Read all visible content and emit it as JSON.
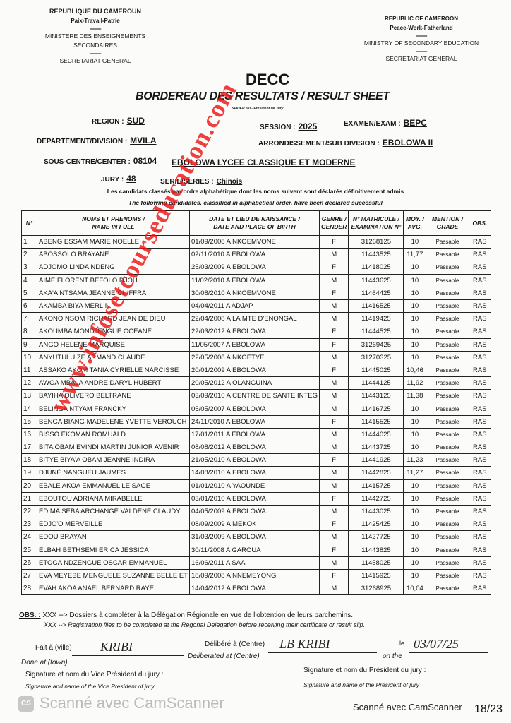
{
  "header_left": {
    "country": "REPUBLIQUE DU CAMEROUN",
    "motto": "Paix-Travail-Patrie",
    "ministry": "MINISTERE DES ENSEIGNEMENTS SECONDAIRES",
    "secretariat": "SECRETARIAT GENERAL"
  },
  "header_right": {
    "country": "REPUBLIC OF CAMEROON",
    "motto": "Peace-Work-Fatherland",
    "ministry": "MINISTRY OF SECONDARY EDUCATION",
    "secretariat": "SECRETARIAT GENERAL"
  },
  "title": "DECC",
  "subtitle": "BORDEREAU DES RESULTATS / RESULT SHEET",
  "software": "SPIDER 3.0 - Président de Jury",
  "info": {
    "region_label": "REGION :",
    "region": "SUD",
    "session_label": "SESSION :",
    "session": "2025",
    "exam_label": "EXAMEN/EXAM :",
    "exam": "BEPC",
    "division_label": "DEPARTEMENT/DIVISION :",
    "division": "MVILA",
    "subdivision_label": "ARRONDISSEMENT/SUB DIVISION :",
    "subdivision": "EBOLOWA II",
    "center_label": "SOUS-CENTRE/CENTER :",
    "center_code": "08104",
    "center_name": "EBOLOWA LYCEE CLASSIQUE ET MODERNE",
    "jury_label": "JURY :",
    "jury": "48",
    "series_label": "SERIE/SERIES :",
    "series": "Chinois"
  },
  "intro_fr": "Les candidats classés par ordre alphabétique dont les noms suivent sont déclarés définitivement admis",
  "intro_en": "The following candidates, classified in alphabetical order, have been declared successful",
  "columns": [
    [
      "N°",
      ""
    ],
    [
      "NOMS ET PRENOMS /",
      "NAME IN FULL"
    ],
    [
      "DATE ET LIEU DE NAISSANCE /",
      "DATE AND PLACE OF BIRTH"
    ],
    [
      "GENRE /",
      "GENDER"
    ],
    [
      "N° MATRICULE /",
      "EXAMINATION N°"
    ],
    [
      "MOY. /",
      "AVG."
    ],
    [
      "MENTION /",
      "GRADE"
    ],
    [
      "OBS.",
      ""
    ]
  ],
  "rows": [
    [
      "1",
      "ABENG ESSAM MARIE NOELLE",
      "01/09/2008 A NKOEMVONE",
      "F",
      "31268125",
      "10",
      "Passable",
      "RAS"
    ],
    [
      "2",
      "ABOSSOLO BRAYANE",
      "02/11/2010 A EBOLOWA",
      "M",
      "11443525",
      "11,77",
      "Passable",
      "RAS"
    ],
    [
      "3",
      "ADJOMO LINDA NDENG",
      "25/03/2009 A EBOLOWA",
      "F",
      "11418025",
      "10",
      "Passable",
      "RAS"
    ],
    [
      "4",
      "AIMÉ FLORENT BEFOLO DJOU",
      "11/02/2010 A EBOLOWA",
      "M",
      "11443625",
      "10",
      "Passable",
      "RAS"
    ],
    [
      "5",
      "AKA'A NTSAMA JEANNE CHIFFRA",
      "30/08/2010 A NKOEMVONE",
      "F",
      "11464425",
      "10",
      "Passable",
      "RAS"
    ],
    [
      "6",
      "AKAMBA BIYA MERLIN",
      "04/04/2011 A ADJAP",
      "M",
      "11416525",
      "10",
      "Passable",
      "RAS"
    ],
    [
      "7",
      "AKONO NSOM RICHARD JEAN DE DIEU",
      "22/04/2008 A LA MTE D'ENONGAL",
      "M",
      "11419425",
      "10",
      "Passable",
      "RAS"
    ],
    [
      "8",
      "AKOUMBA MONDJENGUE OCEANE",
      "22/03/2012 A EBOLOWA",
      "F",
      "11444525",
      "10",
      "Passable",
      "RAS"
    ],
    [
      "9",
      "ANGO HELENE MARQUISE",
      "11/05/2007 A EBOLOWA",
      "F",
      "31269425",
      "10",
      "Passable",
      "RAS"
    ],
    [
      "10",
      "ANYUTULU ZE ARMAND CLAUDE",
      "22/05/2008 A NKOETYE",
      "M",
      "31270325",
      "10",
      "Passable",
      "RAS"
    ],
    [
      "11",
      "ASSAKO AKOM TANIA CYRIELLE NARCISSE",
      "20/01/2009 A EBOLOWA",
      "F",
      "11445025",
      "10,46",
      "Passable",
      "RAS"
    ],
    [
      "12",
      "AWOA MBALA ANDRE DARYL HUBERT",
      "20/05/2012 A OLANGUINA",
      "M",
      "11444125",
      "11,92",
      "Passable",
      "RAS"
    ],
    [
      "13",
      "BAYIHA OLIVERO BELTRANE",
      "03/09/2010 A CENTRE DE SANTE INTEG",
      "M",
      "11443125",
      "11,38",
      "Passable",
      "RAS"
    ],
    [
      "14",
      "BELINGA NTYAM FRANCKY",
      "05/05/2007 A EBOLOWA",
      "M",
      "11416725",
      "10",
      "Passable",
      "RAS"
    ],
    [
      "15",
      "BENGA BIANG MADELENE YVETTE VEROUCH",
      "24/11/2010 A EBOLOWA",
      "F",
      "11415525",
      "10",
      "Passable",
      "RAS"
    ],
    [
      "16",
      "BISSO EKOMAN ROMUALD",
      "17/01/2011 A EBOLOWA",
      "M",
      "11444025",
      "10",
      "Passable",
      "RAS"
    ],
    [
      "17",
      "BITA OBAM EVINDI MARTIN JUNIOR AVENIR",
      "08/08/2012 A EBOLOWA",
      "M",
      "11443725",
      "10",
      "Passable",
      "RAS"
    ],
    [
      "18",
      "BITYE BIYA'A OBAM JEANNE INDIRA",
      "21/05/2010 A EBOLOWA",
      "F",
      "11441925",
      "11,23",
      "Passable",
      "RAS"
    ],
    [
      "19",
      "DJUNÉ NANGUEU JAUMES",
      "14/08/2010 A EBOLOWA",
      "M",
      "11442825",
      "11,27",
      "Passable",
      "RAS"
    ],
    [
      "20",
      "EBALE AKOA EMMANUEL LE SAGE",
      "01/01/2010 A YAOUNDE",
      "M",
      "11415725",
      "10",
      "Passable",
      "RAS"
    ],
    [
      "21",
      "EBOUTOU ADRIANA MIRABELLE",
      "03/01/2010 A EBOLOWA",
      "F",
      "11442725",
      "10",
      "Passable",
      "RAS"
    ],
    [
      "22",
      "EDIMA SEBA ARCHANGE VALDENE CLAUDY",
      "04/05/2009 A EBOLOWA",
      "M",
      "11443025",
      "10",
      "Passable",
      "RAS"
    ],
    [
      "23",
      "EDJO'O MERVEILLE",
      "08/09/2009 A MEKOK",
      "F",
      "11425425",
      "10",
      "Passable",
      "RAS"
    ],
    [
      "24",
      "EDOU BRAYAN",
      "31/03/2009 A EBOLOWA",
      "M",
      "11427725",
      "10",
      "Passable",
      "RAS"
    ],
    [
      "25",
      "ELBAH BETHSEMI ERICA JESSICA",
      "30/11/2008 A GAROUA",
      "F",
      "11443825",
      "10",
      "Passable",
      "RAS"
    ],
    [
      "26",
      "ETOGA NDZENGUE OSCAR EMMANUEL",
      "16/06/2011 A SAA",
      "M",
      "11458025",
      "10",
      "Passable",
      "RAS"
    ],
    [
      "27",
      "EVA MEYEBE MENGUELE SUZANNE BELLE ET",
      "18/09/2008 A NNEMEYONG",
      "F",
      "11415925",
      "10",
      "Passable",
      "RAS"
    ],
    [
      "28",
      "EVAH AKOA ANAEL BERNARD RAYE",
      "14/04/2012 A EBOLOWA",
      "M",
      "31268925",
      "10,04",
      "Passable",
      "RAS"
    ]
  ],
  "obs": {
    "label": "OBS. :",
    "fr": "XXX --> Dossiers à compléter à la Délégation Régionale en vue de l'obtention de leurs parchemins.",
    "en": "XXX --> Registration files to be completed at the Regonal Delegation before receiving their certificate or result slip."
  },
  "footer": {
    "done_at_fr": "Fait à (ville)",
    "done_at_en": "Done at (town)",
    "done_at_value": "KRIBI",
    "deliberated_fr": "Délibéré à (Centre)",
    "deliberated_en": "Deliberated at (Centre)",
    "deliberated_value": "LB KRIBI",
    "date_fr": "le",
    "date_en": "on the",
    "date_value": "03/07/25",
    "vice_sig_fr": "Signature et nom du Vice Président du jury :",
    "vice_sig_en": "Signature and name of the Vice President of jury",
    "pres_sig_fr": "Signature et nom  du Président du jury :",
    "pres_sig_en": "Signature and name of the President of jury"
  },
  "watermark": "www.infosetcourseducation.com",
  "scanner_watermark": "Scanné avec CamScanner",
  "scanner_footer": "Scanné avec CamScanner",
  "page_counter": "18/23",
  "colors": {
    "watermark": "#eb1414",
    "ink": "#161616",
    "paper": "#fbfbfa"
  }
}
